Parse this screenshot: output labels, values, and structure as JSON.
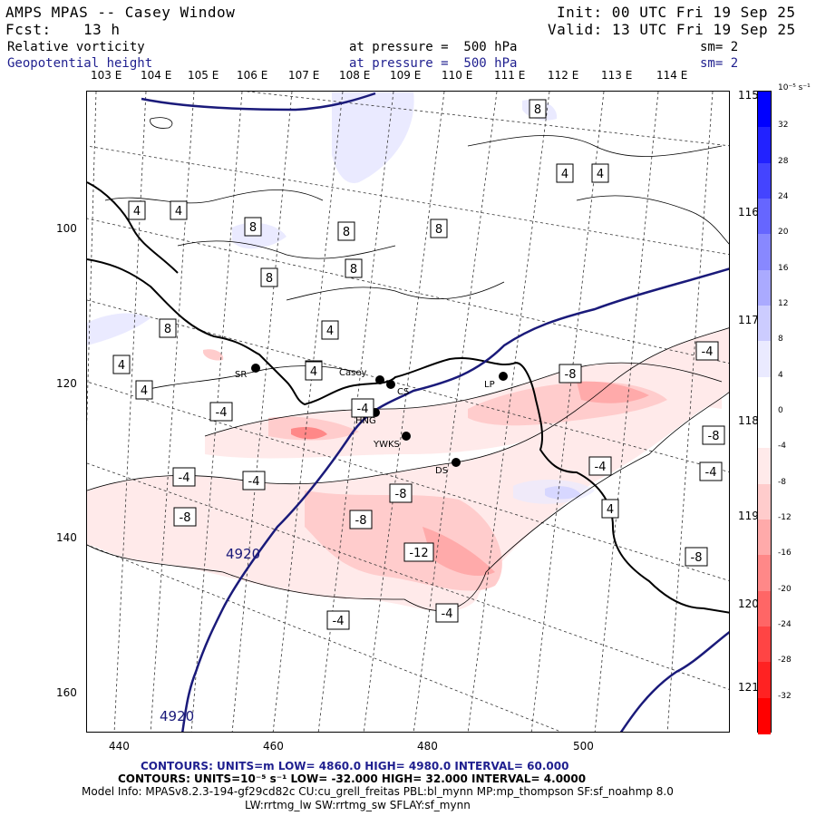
{
  "header": {
    "model": "AMPS MPAS -- Casey Window",
    "init": "Init: 00 UTC Fri 19 Sep 25",
    "fcst_label": "Fcst:",
    "fcst_value": "13 h",
    "valid": "Valid: 13 UTC Fri 19 Sep 25",
    "field1": "Relative vorticity",
    "field1_level": "at pressure =  500 hPa",
    "field1_sm": "sm= 2",
    "field2": "Geopotential height",
    "field2_level": "at pressure =  500 hPa",
    "field2_sm": "sm= 2"
  },
  "map": {
    "top_lon_labels": [
      "103 E",
      "104 E",
      "105 E",
      "106 E",
      "107 E",
      "108 E",
      "109 E",
      "110 E",
      "111 E",
      "112 E",
      "113 E",
      "114 E"
    ],
    "right_lon_labels": [
      "115 E",
      "116 E",
      "117 E",
      "118 E",
      "119 E",
      "120 E",
      "121 E"
    ],
    "y_ticks": [
      "100",
      "120",
      "140",
      "160"
    ],
    "x_ticks": [
      "440",
      "460",
      "480",
      "500"
    ],
    "stations": [
      {
        "name": "SR"
      },
      {
        "name": "Casey"
      },
      {
        "name": "CS"
      },
      {
        "name": "LP"
      },
      {
        "name": "HNG"
      },
      {
        "name": "YWKS"
      },
      {
        "name": "DS"
      }
    ],
    "height_labels": [
      "4920",
      "4920"
    ],
    "vort_labels": [
      "8",
      "4",
      "4",
      "4",
      "4",
      "8",
      "8",
      "8",
      "8",
      "8",
      "8",
      "4",
      "4",
      "4",
      "4",
      "4",
      "-4",
      "-8",
      "-4",
      "-4",
      "-4",
      "-8",
      "-4",
      "-8",
      "-4",
      "-8",
      "-4",
      "-8",
      "-12",
      "-8",
      "-4",
      "-4",
      "4"
    ]
  },
  "colorbar": {
    "unit": "10⁻⁵ s⁻¹",
    "labels": [
      "32",
      "28",
      "24",
      "20",
      "16",
      "12",
      "8",
      "4",
      "0",
      "-4",
      "-8",
      "-12",
      "-16",
      "-20",
      "-24",
      "-28",
      "-32"
    ],
    "colors": [
      "#0000ff",
      "#2222ff",
      "#4444ff",
      "#6666ff",
      "#8888ff",
      "#aaaaff",
      "#ccccff",
      "#eaeaff",
      "#ffffff",
      "#ffffff",
      "#ffeaea",
      "#ffcccc",
      "#ffaaaa",
      "#ff8888",
      "#ff6666",
      "#ff4444",
      "#ff2222",
      "#ff0000"
    ]
  },
  "footer": {
    "line1": "CONTOURS:  UNITS=m  LOW=   4860.0        HIGH=  4980.0        INTERVAL=   60.000",
    "line2": "CONTOURS:  UNITS=10⁻⁵ s⁻¹   LOW=  -32.000        HIGH=  32.000       INTERVAL=   4.0000",
    "line3": "Model Info: MPASv8.2.3-194-gf29cd82c CU:cu_grell_freitas PBL:bl_mynn MP:mp_thompson SF:sf_noahmp 8.0",
    "line4": "LW:rrtmg_lw SW:rrtmg_sw SFLAY:sf_mynn"
  }
}
